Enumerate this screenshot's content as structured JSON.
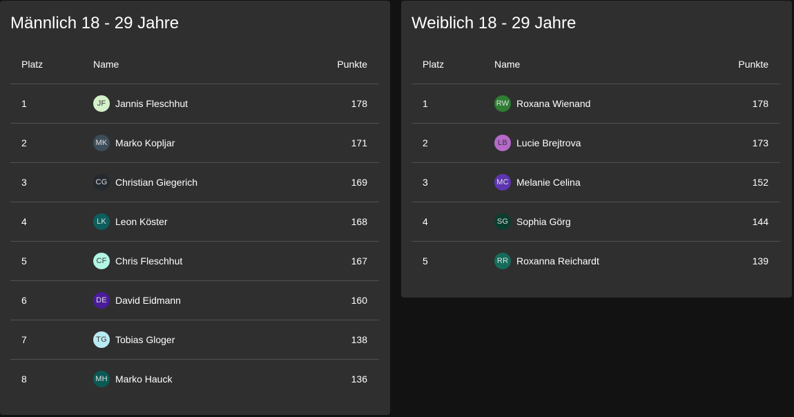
{
  "panels": [
    {
      "title": "Männlich 18 - 29 Jahre",
      "headers": {
        "platz": "Platz",
        "name": "Name",
        "punkte": "Punkte"
      },
      "rows": [
        {
          "platz": "1",
          "initials": "JF",
          "name": "Jannis Fleschhut",
          "punkte": "178",
          "avatar_bg": "#d4f1c9",
          "avatar_fg": "#3a3a3a"
        },
        {
          "platz": "2",
          "initials": "MK",
          "name": "Marko Kopljar",
          "punkte": "171",
          "avatar_bg": "#3d4d5a",
          "avatar_fg": "#e0e0e0"
        },
        {
          "platz": "3",
          "initials": "CG",
          "name": "Christian Giegerich",
          "punkte": "169",
          "avatar_bg": "#23292e",
          "avatar_fg": "#e0e0e0"
        },
        {
          "platz": "4",
          "initials": "LK",
          "name": "Leon Köster",
          "punkte": "168",
          "avatar_bg": "#0d5e5c",
          "avatar_fg": "#e0e0e0"
        },
        {
          "platz": "5",
          "initials": "CF",
          "name": "Chris Fleschhut",
          "punkte": "167",
          "avatar_bg": "#b3f5e5",
          "avatar_fg": "#3a3a3a"
        },
        {
          "platz": "6",
          "initials": "DE",
          "name": "David Eidmann",
          "punkte": "160",
          "avatar_bg": "#4a1c9a",
          "avatar_fg": "#e0e0e0"
        },
        {
          "platz": "7",
          "initials": "TG",
          "name": "Tobias Gloger",
          "punkte": "138",
          "avatar_bg": "#b9eaf2",
          "avatar_fg": "#3a3a3a"
        },
        {
          "platz": "8",
          "initials": "MH",
          "name": "Marko Hauck",
          "punkte": "136",
          "avatar_bg": "#0a5a54",
          "avatar_fg": "#e0e0e0"
        }
      ]
    },
    {
      "title": "Weiblich 18 - 29 Jahre",
      "headers": {
        "platz": "Platz",
        "name": "Name",
        "punkte": "Punkte"
      },
      "rows": [
        {
          "platz": "1",
          "initials": "RW",
          "name": "Roxana Wienand",
          "punkte": "178",
          "avatar_bg": "#2e7d32",
          "avatar_fg": "#e0e0e0"
        },
        {
          "platz": "2",
          "initials": "LB",
          "name": "Lucie Brejtrova",
          "punkte": "173",
          "avatar_bg": "#b569c8",
          "avatar_fg": "#3a3a3a"
        },
        {
          "platz": "3",
          "initials": "MC",
          "name": "Melanie Celina",
          "punkte": "152",
          "avatar_bg": "#5e35b1",
          "avatar_fg": "#e0e0e0"
        },
        {
          "platz": "4",
          "initials": "SG",
          "name": "Sophia Görg",
          "punkte": "144",
          "avatar_bg": "#0a3d2e",
          "avatar_fg": "#e0e0e0"
        },
        {
          "platz": "5",
          "initials": "RR",
          "name": "Roxanna Reichardt",
          "punkte": "139",
          "avatar_bg": "#156b5a",
          "avatar_fg": "#e0e0e0"
        }
      ]
    }
  ]
}
